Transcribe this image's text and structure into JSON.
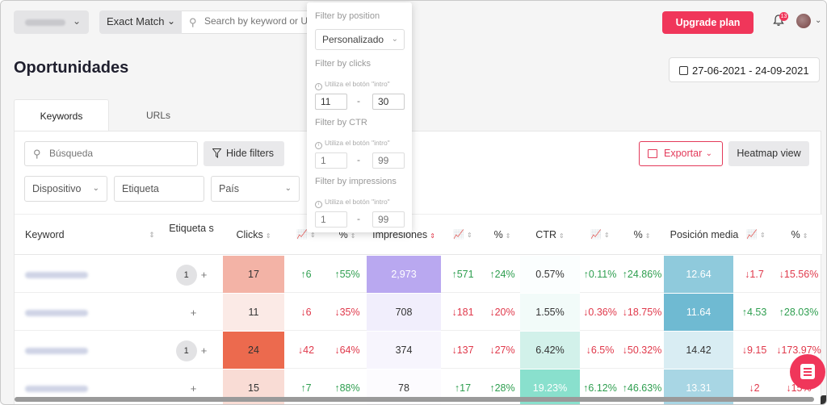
{
  "topbar": {
    "match_label": "Exact Match",
    "search_placeholder": "Search by keyword or U",
    "upgrade_label": "Upgrade plan",
    "notif_count": "13"
  },
  "page": {
    "title": "Oportunidades",
    "date_range": "27-06-2021 - 24-09-2021"
  },
  "tabs": [
    {
      "label": "Keywords"
    },
    {
      "label": "URLs"
    }
  ],
  "toolbar": {
    "search_placeholder": "Búsqueda",
    "hide_filters": "Hide filters",
    "exportar": "Exportar",
    "heatmap": "Heatmap view"
  },
  "filters": {
    "dispositivo": "Dispositivo",
    "etiqueta": "Etiqueta",
    "pais": "País"
  },
  "popover": {
    "position_label": "Filter by position",
    "position_value": "Personalizado",
    "clicks_label": "Filter by clicks",
    "hint": "Utiliza el botón \"intro\"",
    "clicks_min": "11",
    "clicks_max": "30",
    "ctr_label": "Filter by CTR",
    "ctr_min": "1",
    "ctr_max": "99",
    "impr_label": "Filter by impressions",
    "impr_min": "1",
    "impr_max": "99",
    "dash": "-"
  },
  "table": {
    "headers": {
      "keyword": "Keyword",
      "etiquetas": "Etiqueta s",
      "clicks": "Clicks",
      "pct": "%",
      "impresiones": "Impresiones",
      "ctr": "CTR",
      "posicion": "Posición media"
    },
    "rows": [
      {
        "tag": "1",
        "clicks": "17",
        "clicks_d": "↑6",
        "clicks_p": "↑55%",
        "impr": "2,973",
        "impr_d": "↑571",
        "impr_p": "↑24%",
        "ctr": "0.57%",
        "ctr_d": "↑0.11%",
        "ctr_p": "↑24.86%",
        "pos": "12.64",
        "pos_d": "↓1.7",
        "pos_p": "↓15.56%"
      },
      {
        "tag": "",
        "clicks": "11",
        "clicks_d": "↓6",
        "clicks_p": "↓35%",
        "impr": "708",
        "impr_d": "↓181",
        "impr_p": "↓20%",
        "ctr": "1.55%",
        "ctr_d": "↓0.36%",
        "ctr_p": "↓18.75%",
        "pos": "11.64",
        "pos_d": "↑4.53",
        "pos_p": "↑28.03%"
      },
      {
        "tag": "1",
        "clicks": "24",
        "clicks_d": "↓42",
        "clicks_p": "↓64%",
        "impr": "374",
        "impr_d": "↓137",
        "impr_p": "↓27%",
        "ctr": "6.42%",
        "ctr_d": "↓6.5%",
        "ctr_p": "↓50.32%",
        "pos": "14.42",
        "pos_d": "↓9.15",
        "pos_p": "↓173.97%"
      },
      {
        "tag": "",
        "clicks": "15",
        "clicks_d": "↑7",
        "clicks_p": "↑88%",
        "impr": "78",
        "impr_d": "↑17",
        "impr_p": "↑28%",
        "ctr": "19.23%",
        "ctr_d": "↑6.12%",
        "ctr_p": "↑46.63%",
        "pos": "13.31",
        "pos_d": "↓2",
        "pos_p": "↓15%"
      }
    ]
  },
  "colors": {
    "brand": "#f0365a",
    "up": "#2e9e4f",
    "down": "#e0394b"
  }
}
